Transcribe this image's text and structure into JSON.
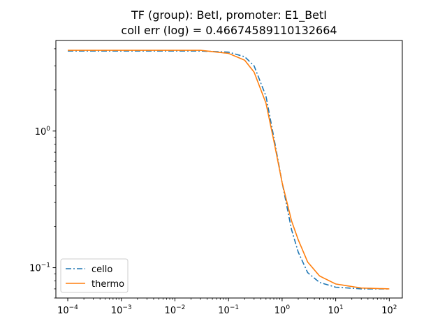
{
  "chart_data": {
    "type": "line",
    "title": "TF (group): BetI, promoter: E1_BetI",
    "subtitle": "coll err (log) = 0.46674589110132664",
    "xlabel": "",
    "ylabel": "",
    "xscale": "log",
    "yscale": "log",
    "xlim": [
      6e-05,
      175
    ],
    "ylim": [
      0.06,
      4.6
    ],
    "grid": false,
    "legend_position": "lower-left",
    "x_ticks": [
      {
        "base": "10",
        "exp": "−4",
        "value": 0.0001
      },
      {
        "base": "10",
        "exp": "−3",
        "value": 0.001
      },
      {
        "base": "10",
        "exp": "−2",
        "value": 0.01
      },
      {
        "base": "10",
        "exp": "−1",
        "value": 0.1
      },
      {
        "base": "10",
        "exp": "0",
        "value": 1
      },
      {
        "base": "10",
        "exp": "1",
        "value": 10
      },
      {
        "base": "10",
        "exp": "2",
        "value": 100
      }
    ],
    "y_ticks": [
      {
        "base": "10",
        "exp": "−1",
        "value": 0.1
      },
      {
        "base": "10",
        "exp": "0",
        "value": 1
      }
    ],
    "series": [
      {
        "name": "cello",
        "color": "#1f77b4",
        "dash": "dashdot",
        "x": [
          0.0001,
          0.001,
          0.01,
          0.03,
          0.1,
          0.2,
          0.3,
          0.5,
          0.7,
          1,
          1.5,
          2,
          3,
          5,
          10,
          30,
          100
        ],
        "y": [
          3.85,
          3.85,
          3.85,
          3.85,
          3.78,
          3.5,
          3.0,
          1.8,
          0.9,
          0.42,
          0.19,
          0.13,
          0.092,
          0.078,
          0.072,
          0.07,
          0.07
        ]
      },
      {
        "name": "thermo",
        "color": "#ff7f0e",
        "dash": "solid",
        "x": [
          0.0001,
          0.001,
          0.01,
          0.03,
          0.1,
          0.2,
          0.3,
          0.5,
          0.7,
          1,
          1.5,
          2,
          3,
          5,
          10,
          30,
          100
        ],
        "y": [
          3.9,
          3.9,
          3.9,
          3.9,
          3.7,
          3.3,
          2.7,
          1.6,
          0.85,
          0.42,
          0.22,
          0.16,
          0.11,
          0.087,
          0.076,
          0.071,
          0.07
        ]
      }
    ]
  }
}
